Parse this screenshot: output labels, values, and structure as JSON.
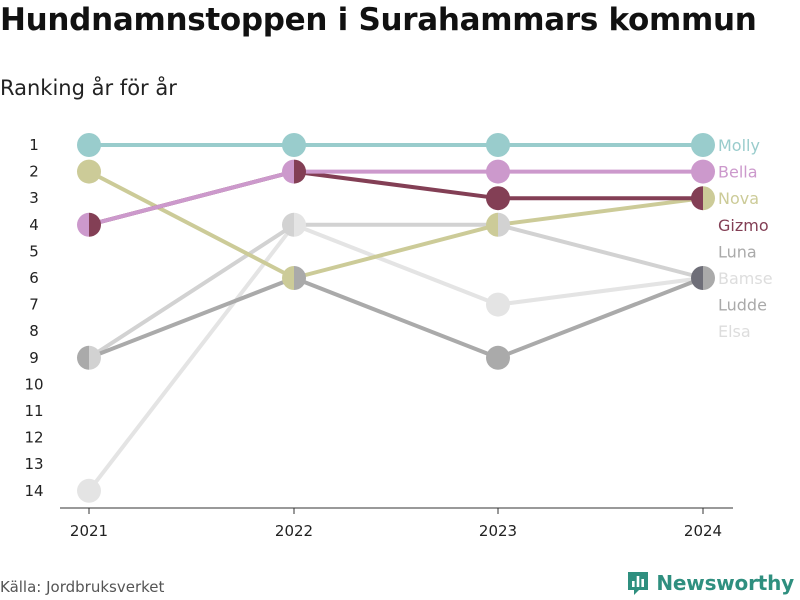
{
  "title": "Hundnamnstoppen i Surahammars kommun",
  "subtitle": "Ranking år för år",
  "source": "Källa: Jordbruksverket",
  "brand": "Newsworthy",
  "colors": {
    "brand": "#2f8f7f"
  },
  "chart_data": {
    "type": "line",
    "x": [
      "2021",
      "2022",
      "2023",
      "2024"
    ],
    "y_ticks": [
      1,
      2,
      3,
      4,
      5,
      6,
      7,
      8,
      9,
      10,
      11,
      12,
      13,
      14
    ],
    "y_reversed": true,
    "ylim": [
      1,
      14
    ],
    "grid": false,
    "series": [
      {
        "name": "Elsa",
        "color": "#e4e4e4",
        "values": [
          14,
          4,
          7,
          6
        ]
      },
      {
        "name": "Ludde",
        "color": "#d2d2d2",
        "values": [
          9,
          4,
          4,
          6
        ]
      },
      {
        "name": "Luna",
        "color": "#aaaaaa",
        "values": [
          9,
          6,
          9,
          6
        ]
      },
      {
        "name": "Bamse",
        "color": "#6e6e78",
        "values": [
          null,
          null,
          null,
          6
        ]
      },
      {
        "name": "Nova",
        "color": "#cccb98",
        "values": [
          2,
          6,
          4,
          3
        ]
      },
      {
        "name": "Gizmo",
        "color": "#833f55",
        "values": [
          4,
          2,
          3,
          3
        ]
      },
      {
        "name": "Bella",
        "color": "#cc99cc",
        "values": [
          4,
          2,
          2,
          2
        ]
      },
      {
        "name": "Molly",
        "color": "#99cccc",
        "values": [
          1,
          1,
          1,
          1
        ]
      }
    ],
    "labels": [
      {
        "text": "Molly",
        "color": "#99cccc"
      },
      {
        "text": "Bella",
        "color": "#cc99cc"
      },
      {
        "text": "Nova",
        "color": "#cccb98"
      },
      {
        "text": "Gizmo",
        "color": "#833f55"
      },
      {
        "text": "Luna",
        "color": "#aaaaaa"
      },
      {
        "text": "Bamse",
        "color": "#dddddd"
      },
      {
        "text": "Ludde",
        "color": "#aaaaaa"
      },
      {
        "text": "Elsa",
        "color": "#dddddd"
      }
    ]
  }
}
